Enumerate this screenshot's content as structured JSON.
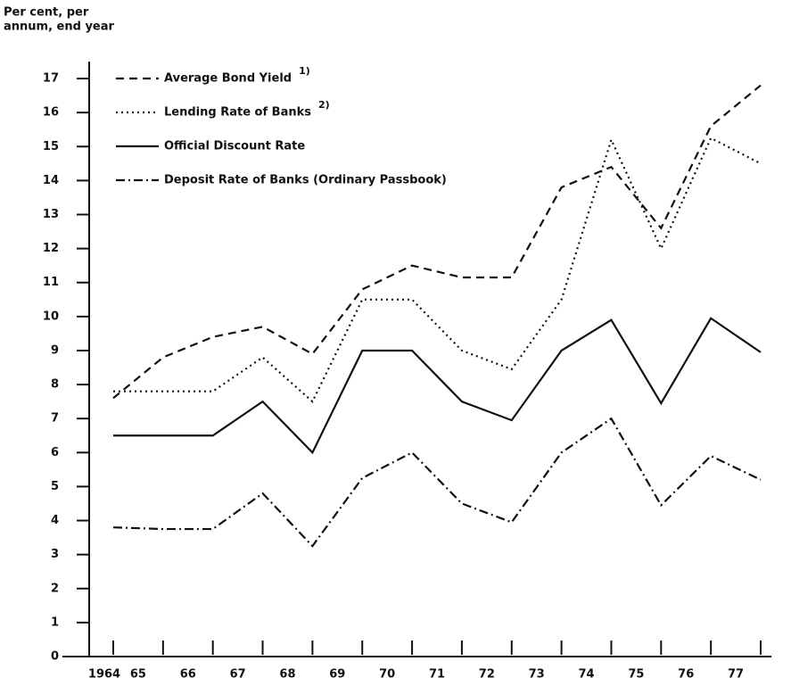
{
  "chart_data": {
    "type": "line",
    "y_label": [
      "Per cent, per",
      "annum, end year"
    ],
    "categories": [
      "1964",
      "65",
      "66",
      "67",
      "68",
      "69",
      "70",
      "71",
      "72",
      "73",
      "74",
      "75",
      "76",
      "77"
    ],
    "ylim": [
      0,
      17.5
    ],
    "yticks": [
      0,
      1,
      2,
      3,
      4,
      5,
      6,
      7,
      8,
      9,
      10,
      11,
      12,
      13,
      14,
      15,
      16,
      17
    ],
    "series": [
      {
        "name": "Average Bond Yield",
        "footnote": "1)",
        "color": "#111111",
        "dash": "9,6",
        "values": [
          7.6,
          8.8,
          9.4,
          9.7,
          8.9,
          10.8,
          11.5,
          11.15,
          11.15,
          13.8,
          14.4,
          12.6,
          15.6,
          16.8
        ]
      },
      {
        "name": "Lending Rate of Banks",
        "footnote": "2)",
        "color": "#111111",
        "dash": "2,4",
        "values": [
          7.8,
          7.8,
          7.8,
          8.8,
          7.5,
          10.5,
          10.5,
          9.0,
          8.45,
          10.5,
          15.2,
          12.0,
          15.25,
          14.5
        ]
      },
      {
        "name": "Official Discount Rate",
        "color": "#111111",
        "dash": "none",
        "values": [
          6.5,
          6.5,
          6.5,
          7.5,
          6.0,
          9.0,
          9.0,
          7.5,
          6.95,
          9.0,
          9.9,
          7.45,
          9.95,
          8.95
        ]
      },
      {
        "name": "Deposit Rate of Banks (Ordinary Passbook)",
        "color": "#111111",
        "dash": "10,4,2,4",
        "values": [
          3.8,
          3.75,
          3.75,
          4.8,
          3.25,
          5.25,
          6.0,
          4.5,
          3.95,
          6.0,
          7.0,
          4.45,
          5.9,
          5.2
        ]
      }
    ]
  }
}
